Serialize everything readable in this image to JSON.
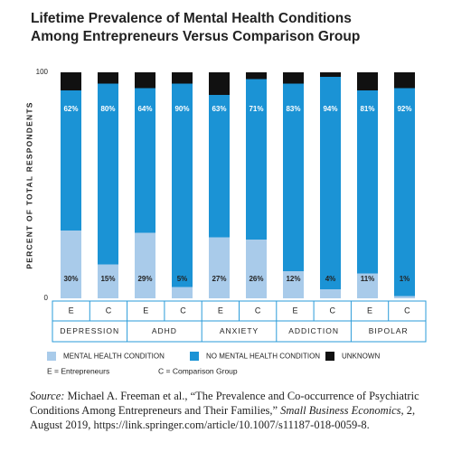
{
  "chart_data": {
    "type": "stacked_bar",
    "title": [
      "Lifetime Prevalence of Mental Health Conditions",
      "Among Entrepreneurs Versus Comparison Group"
    ],
    "y_label": "PERCENT OF TOTAL RESPONDENTS",
    "categories": [
      "E",
      "C",
      "E",
      "C",
      "E",
      "C",
      "E",
      "C",
      "E",
      "C"
    ],
    "groups": [
      "DEPRESSION",
      "ADHD",
      "ANXIETY",
      "ADDICTION",
      "BIPOLAR"
    ],
    "series": [
      {
        "name": "MENTAL HEALTH CONDITION",
        "color": "#a9cbea",
        "values": [
          30,
          15,
          29,
          5,
          27,
          26,
          12,
          4,
          11,
          1
        ],
        "value_labels": [
          "30%",
          "15%",
          "29%",
          "5%",
          "27%",
          "26%",
          "12%",
          "4%",
          "11%",
          "1%"
        ]
      },
      {
        "name": "NO MENTAL HEALTH CONDITION",
        "color": "#1b93d5",
        "values": [
          62,
          80,
          64,
          90,
          63,
          71,
          83,
          94,
          81,
          92
        ],
        "value_labels": [
          "62%",
          "80%",
          "64%",
          "90%",
          "63%",
          "71%",
          "83%",
          "94%",
          "81%",
          "92%"
        ]
      },
      {
        "name": "UNKNOWN",
        "color": "#111111",
        "values": [
          8,
          5,
          7,
          5,
          10,
          3,
          5,
          2,
          8,
          7
        ]
      }
    ],
    "ylim": [
      0,
      100
    ],
    "yticks": [
      0,
      100
    ],
    "notes": [
      "E = Entrepreneurs",
      "C = Comparison Group"
    ]
  },
  "source": {
    "label": "Source:",
    "text": "Michael A. Freeman et al., “The Prevalence and Co-occurrence of Psychiatric Conditions Among Entrepreneurs and Their Families,”",
    "journal": "Small Business Economics",
    "rest": ", 2, August 2019, https://link.springer.com/article/10.1007/s11187-018-0059-8."
  }
}
